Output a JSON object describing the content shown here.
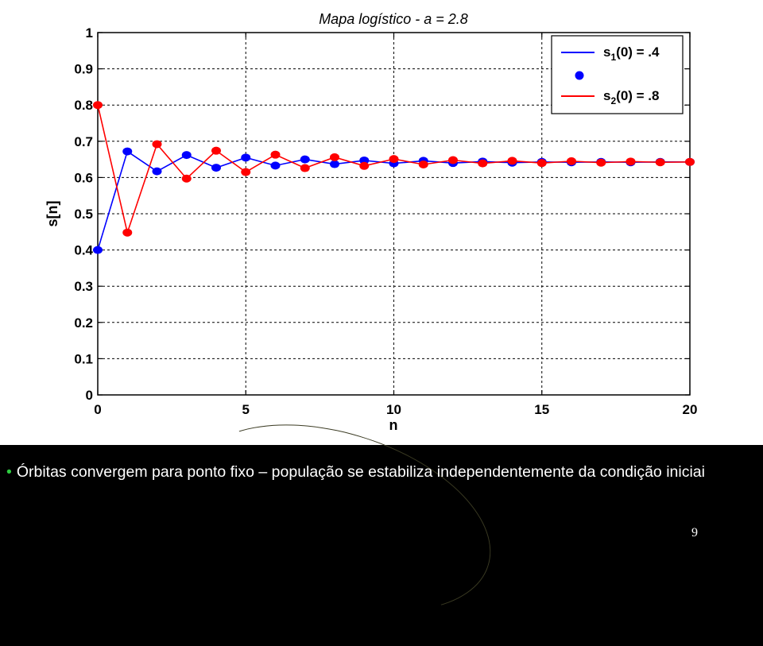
{
  "chart_data": {
    "type": "line",
    "title": "Mapa logístico - a = 2.8",
    "xlabel": "n",
    "ylabel": "s[n]",
    "xlim": [
      0,
      20
    ],
    "ylim": [
      0,
      1
    ],
    "xticks": [
      0,
      5,
      10,
      15,
      20
    ],
    "yticks": [
      0,
      0.1,
      0.2,
      0.3,
      0.4,
      0.5,
      0.6,
      0.7,
      0.8,
      0.9,
      1
    ],
    "ytick_labels": [
      "0",
      "0.1",
      "0.2",
      "0.3",
      "0.4",
      "0.5",
      "0.6",
      "0.7",
      "0.8",
      "0.9",
      "1"
    ],
    "grid": true,
    "legend_position": "top-right",
    "x": [
      0,
      1,
      2,
      3,
      4,
      5,
      6,
      7,
      8,
      9,
      10,
      11,
      12,
      13,
      14,
      15,
      16,
      17,
      18,
      19,
      20
    ],
    "series": [
      {
        "name": "s1(0) = .4",
        "color": "#0000ff",
        "values": [
          0.4,
          0.672,
          0.617,
          0.662,
          0.627,
          0.655,
          0.633,
          0.65,
          0.637,
          0.647,
          0.639,
          0.646,
          0.64,
          0.644,
          0.641,
          0.643,
          0.642,
          0.643,
          0.642,
          0.643,
          0.643
        ]
      },
      {
        "name": "s2(0) = .8",
        "color": "#ff0000",
        "values": [
          0.8,
          0.448,
          0.692,
          0.597,
          0.674,
          0.615,
          0.663,
          0.626,
          0.656,
          0.632,
          0.651,
          0.636,
          0.648,
          0.639,
          0.646,
          0.64,
          0.645,
          0.641,
          0.644,
          0.642,
          0.643
        ]
      }
    ],
    "legend": [
      {
        "symbol": "s",
        "subscript": "1",
        "rest": "(0) = .4",
        "color": "#0000ff"
      },
      {
        "symbol": "s",
        "subscript": "2",
        "rest": "(0) = .8",
        "color": "#ff0000"
      }
    ]
  },
  "slide": {
    "caption": "Órbitas convergem para ponto fixo – população se estabiliza independentemente da condição iniciai",
    "bullet": "•",
    "page_number": "9"
  }
}
